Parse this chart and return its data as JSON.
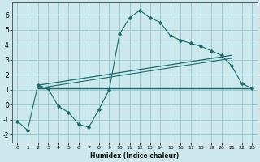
{
  "xlabel": "Humidex (Indice chaleur)",
  "bg_color": "#cce8ec",
  "grid_color": "#99ccd4",
  "line_color": "#1a6b6b",
  "xlim": [
    -0.5,
    23.5
  ],
  "ylim": [
    -2.5,
    6.8
  ],
  "xticks": [
    0,
    1,
    2,
    3,
    4,
    5,
    6,
    7,
    8,
    9,
    10,
    11,
    12,
    13,
    14,
    15,
    16,
    17,
    18,
    19,
    20,
    21,
    22,
    23
  ],
  "yticks": [
    -2,
    -1,
    0,
    1,
    2,
    3,
    4,
    5,
    6
  ],
  "curve1_x": [
    0,
    1,
    2,
    3,
    4,
    5,
    6,
    7,
    8,
    9,
    10,
    11,
    12,
    13,
    14,
    15,
    16,
    17,
    18,
    19,
    20,
    21,
    22,
    23
  ],
  "curve1_y": [
    -1.1,
    -1.7,
    1.3,
    1.1,
    -0.1,
    -0.5,
    -1.3,
    -1.5,
    -0.3,
    1.0,
    4.7,
    5.8,
    6.3,
    5.8,
    5.5,
    4.6,
    4.3,
    4.1,
    3.9,
    3.6,
    3.3,
    2.6,
    1.4,
    1.1
  ],
  "curve2_x": [
    2,
    23
  ],
  "curve2_y": [
    1.1,
    1.1
  ],
  "curve3_x": [
    2,
    21
  ],
  "curve3_y": [
    1.3,
    3.3
  ],
  "curve4_x": [
    2,
    21
  ],
  "curve4_y": [
    1.1,
    3.1
  ]
}
